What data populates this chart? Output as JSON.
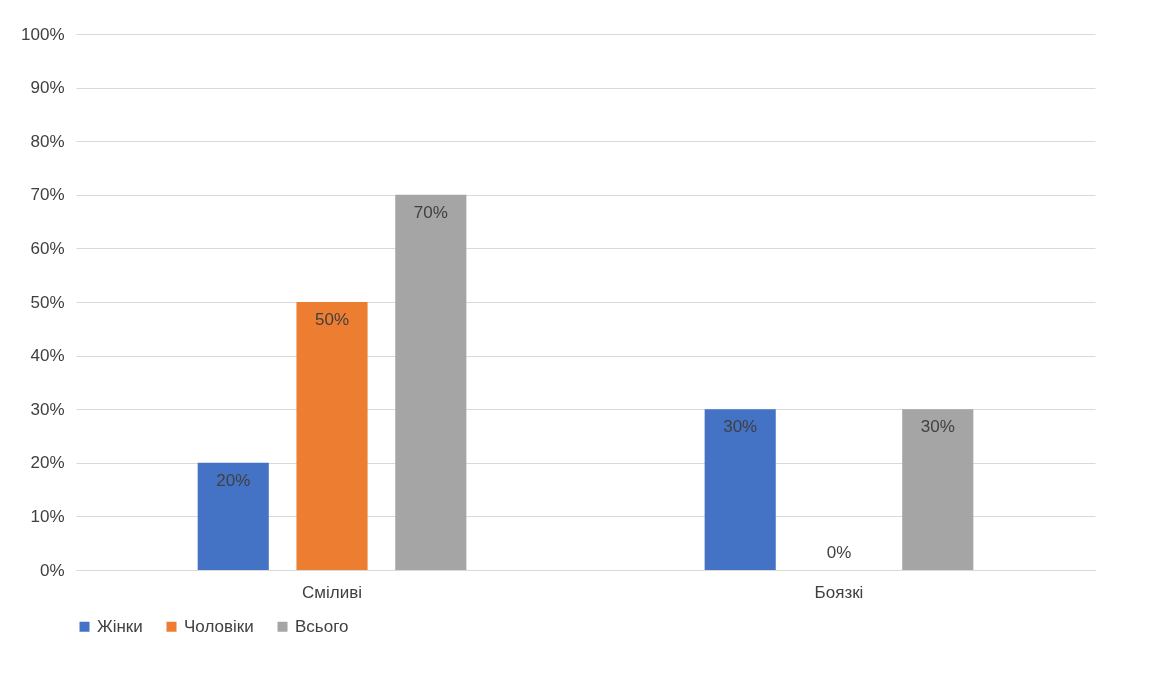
{
  "chart_data": {
    "type": "bar",
    "categories": [
      "Сміливі",
      "Боязкі"
    ],
    "series": [
      {
        "name": "Жінки",
        "color": "#4472c4",
        "values": [
          20,
          30
        ],
        "value_labels": [
          "20%",
          "30%"
        ]
      },
      {
        "name": "Чоловіки",
        "color": "#ed7d31",
        "values": [
          50,
          0
        ],
        "value_labels": [
          "50%",
          "0%"
        ]
      },
      {
        "name": "Всього",
        "color": "#a5a5a5",
        "values": [
          70,
          30
        ],
        "value_labels": [
          "70%",
          "30%"
        ]
      }
    ],
    "ylim": [
      0,
      100
    ],
    "yticks": [
      {
        "value": 0,
        "label": "0%"
      },
      {
        "value": 10,
        "label": "10%"
      },
      {
        "value": 20,
        "label": "20%"
      },
      {
        "value": 30,
        "label": "30%"
      },
      {
        "value": 40,
        "label": "40%"
      },
      {
        "value": 50,
        "label": "50%"
      },
      {
        "value": 60,
        "label": "60%"
      },
      {
        "value": 70,
        "label": "70%"
      },
      {
        "value": 80,
        "label": "80%"
      },
      {
        "value": 90,
        "label": "90%"
      },
      {
        "value": 100,
        "label": "100%"
      }
    ],
    "grid": "y",
    "legend": "bottom"
  }
}
